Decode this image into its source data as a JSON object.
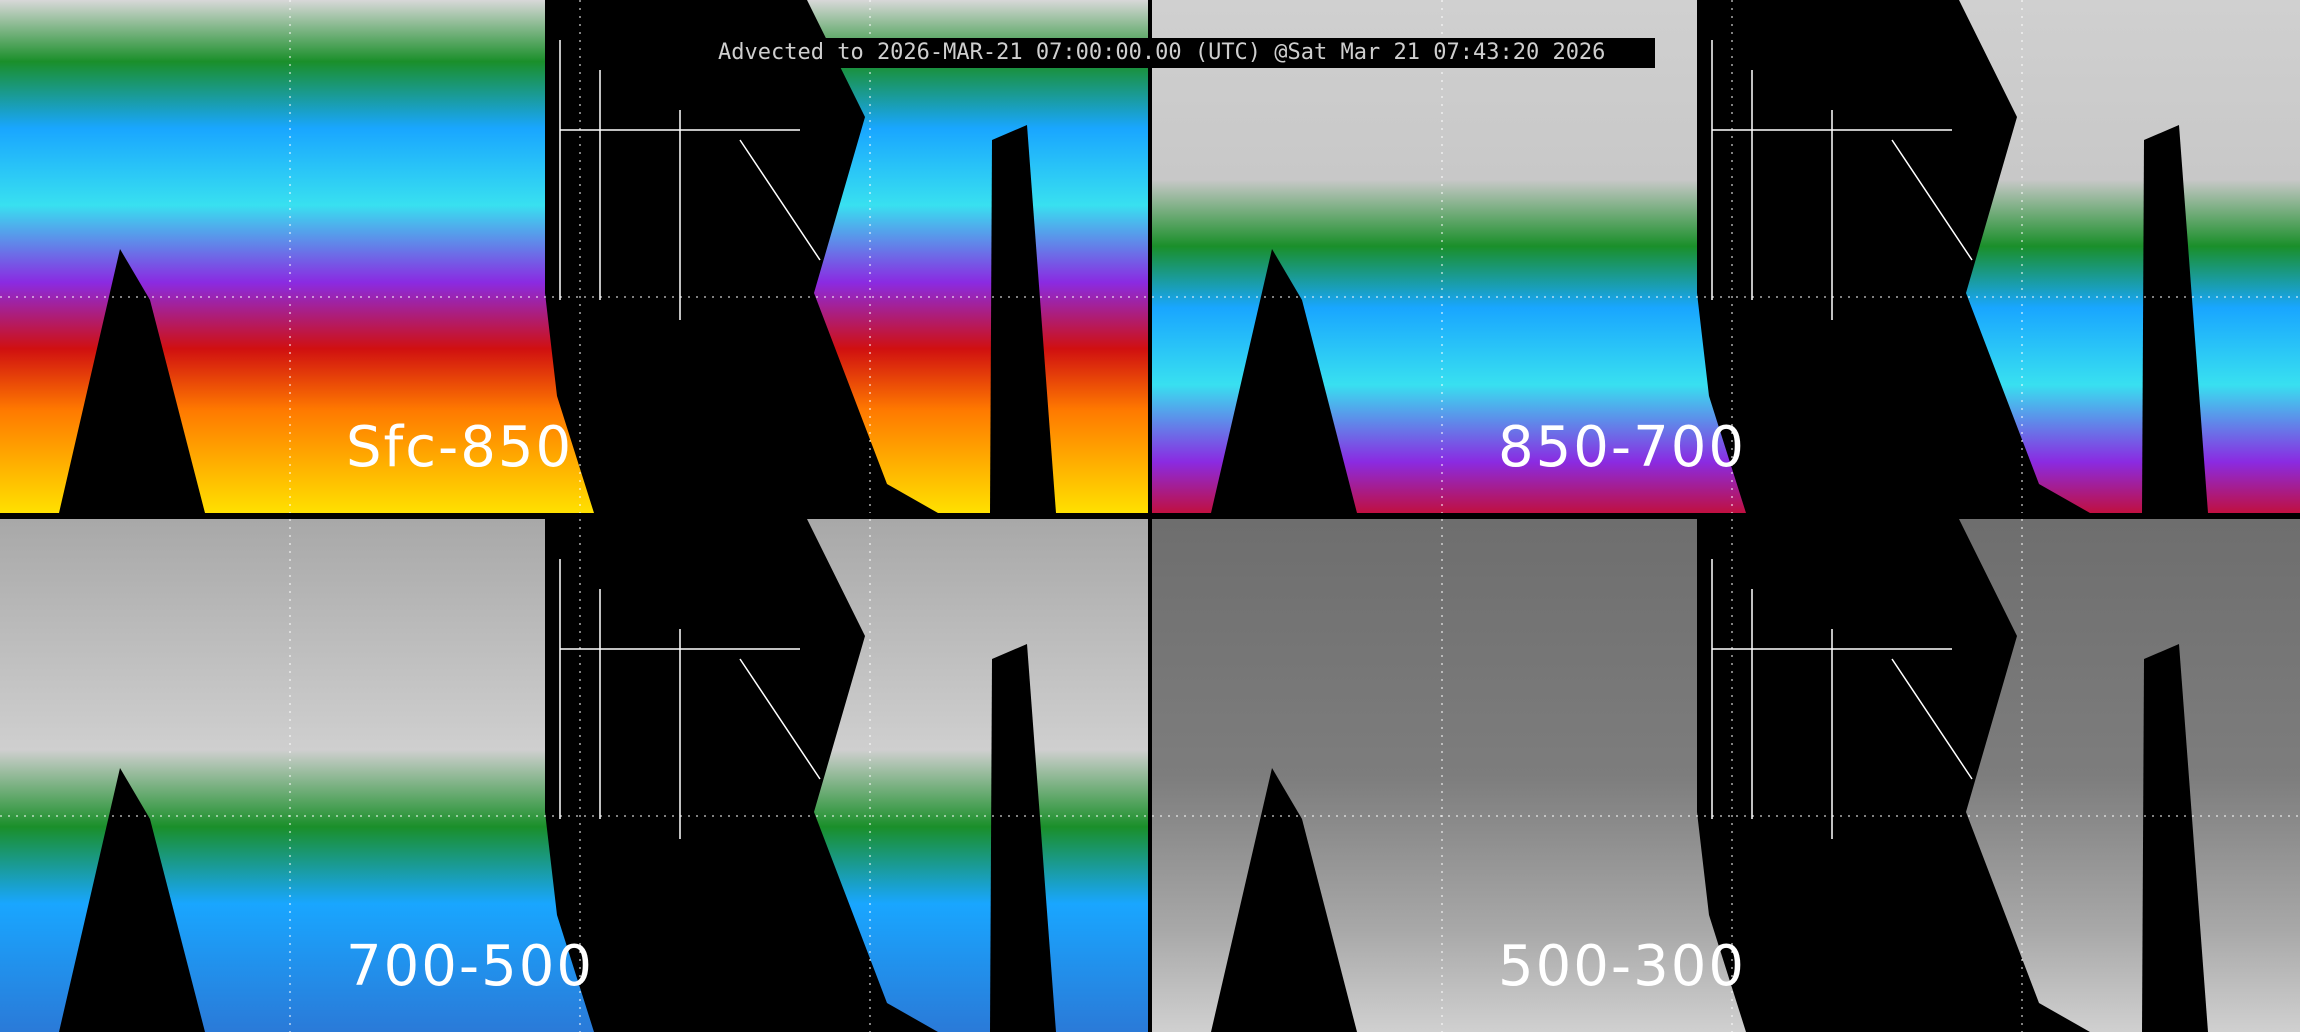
{
  "title": "Advected to 2026-MAR-21 07:00:00.00 (UTC) @Sat Mar 21 07:43:20 2026",
  "panels": [
    {
      "label": "Sfc-850",
      "palette": [
        "#d8d8d8",
        "#1a8f2a",
        "#19a6ff",
        "#38e0f0",
        "#8a2be2",
        "#d01010",
        "#ff7a00",
        "#ffe000"
      ]
    },
    {
      "label": "850-700",
      "palette": [
        "#d0d0d0",
        "#1a8f2a",
        "#19a6ff",
        "#38e0f0",
        "#8a2be2",
        "#c01040"
      ]
    },
    {
      "label": "700-500",
      "palette": [
        "#bdbdbd",
        "#1a8f2a",
        "#19a6ff",
        "#7a2be2"
      ]
    },
    {
      "label": "500-300",
      "palette": [
        "#7a7a7a",
        "#cfcfcf",
        "#1a8f2a"
      ]
    }
  ],
  "colors": {
    "background": "#000000",
    "land_outline": "#ffffff",
    "label": "#ffffff",
    "title_text": "#cfcfcf"
  }
}
